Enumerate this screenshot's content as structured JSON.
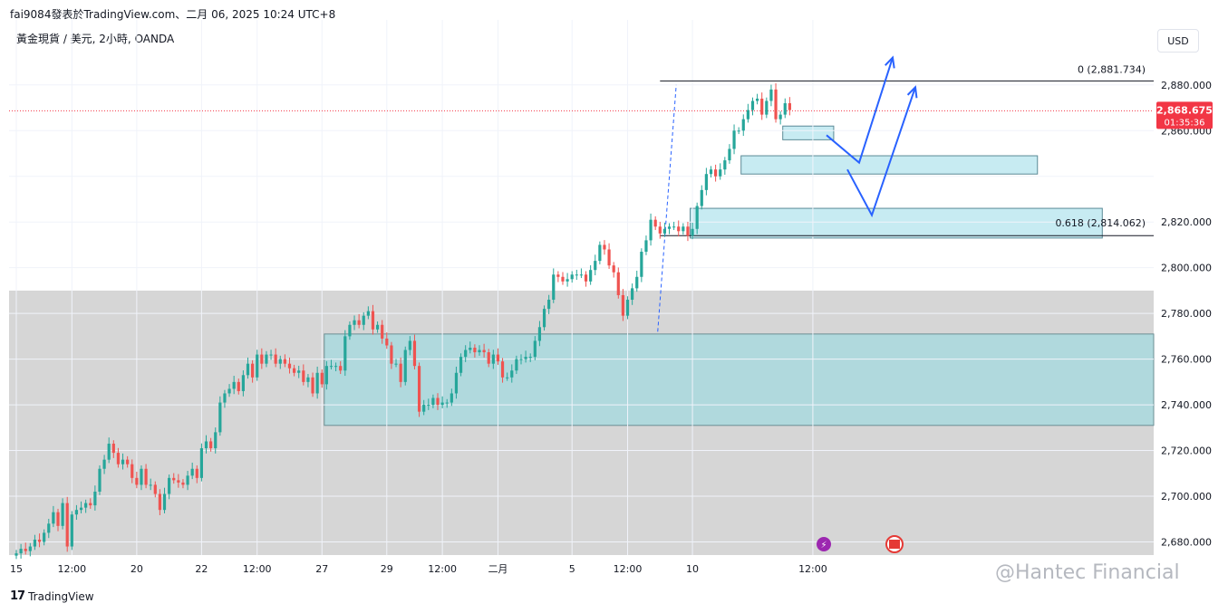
{
  "header": {
    "publisher_line": "fai9084發表於TradingView.com、二月 06, 2025 10:24 UTC+8",
    "symbol_line": "黃金現貨 / 美元, 2小時, OANDA",
    "currency": "USD"
  },
  "footer": {
    "logo_text": "TradingView",
    "watermark": "@Hantec Financial"
  },
  "colors": {
    "up": "#26a69a",
    "down": "#ef5350",
    "gray_zone": "#d6d6d6",
    "zone_fill": "#b4e4ee",
    "arrow": "#2962ff",
    "price_line": "#f23645"
  },
  "chart_data": {
    "type": "candlestick",
    "ylim": [
      2672,
      2898
    ],
    "y_ticks": [
      2680,
      2700,
      2720,
      2740,
      2760,
      2780,
      2800,
      2820,
      2840,
      2860,
      2880
    ],
    "y_tick_labels": [
      "2,680.000",
      "2,700.000",
      "2,720.000",
      "2,740.000",
      "2,760.000",
      "2,780.000",
      "2,800.000",
      "2,820.000",
      "",
      "2,860.000",
      "2,880.000"
    ],
    "x_ticks": [
      {
        "index": 0,
        "label": "15"
      },
      {
        "index": 12,
        "label": "12:00"
      },
      {
        "index": 26,
        "label": "20"
      },
      {
        "index": 40,
        "label": "22"
      },
      {
        "index": 52,
        "label": "12:00"
      },
      {
        "index": 66,
        "label": "27"
      },
      {
        "index": 80,
        "label": "29"
      },
      {
        "index": 92,
        "label": "12:00"
      },
      {
        "index": 104,
        "label": "二月"
      },
      {
        "index": 120,
        "label": "5"
      },
      {
        "index": 132,
        "label": "12:00"
      },
      {
        "index": 146,
        "label": "10"
      },
      {
        "index": 172,
        "label": "12:00"
      }
    ],
    "closes": [
      2675,
      2677,
      2676,
      2678,
      2681,
      2680,
      2684,
      2688,
      2693,
      2687,
      2697,
      2678,
      2692,
      2694,
      2695,
      2697,
      2696,
      2702,
      2712,
      2716,
      2723,
      2719,
      2714,
      2716,
      2714,
      2708,
      2705,
      2712,
      2705,
      2705,
      2701,
      2694,
      2701,
      2708,
      2707,
      2706,
      2705,
      2709,
      2712,
      2708,
      2721,
      2724,
      2721,
      2728,
      2741,
      2745,
      2747,
      2750,
      2746,
      2753,
      2758,
      2752,
      2762,
      2758,
      2762,
      2762,
      2758,
      2760,
      2758,
      2756,
      2754,
      2755,
      2750,
      2752,
      2745,
      2754,
      2749,
      2757,
      2757,
      2757,
      2755,
      2770,
      2775,
      2777,
      2775,
      2779,
      2781,
      2773,
      2775,
      2769,
      2766,
      2758,
      2758,
      2750,
      2764,
      2768,
      2757,
      2737,
      2740,
      2740,
      2743,
      2740,
      2741,
      2741,
      2745,
      2754,
      2761,
      2764,
      2765,
      2763,
      2764,
      2763,
      2758,
      2762,
      2759,
      2752,
      2752,
      2755,
      2760,
      2760,
      2761,
      2761,
      2768,
      2774,
      2782,
      2786,
      2797,
      2796,
      2794,
      2795,
      2797,
      2797,
      2797,
      2794,
      2799,
      2803,
      2810,
      2808,
      2801,
      2798,
      2788,
      2779,
      2786,
      2791,
      2796,
      2807,
      2812,
      2821,
      2818,
      2815,
      2817,
      2818,
      2818,
      2816,
      2818,
      2814,
      2817,
      2827,
      2834,
      2841,
      2843,
      2840,
      2843,
      2847,
      2852,
      2860,
      2860,
      2865,
      2869,
      2873,
      2874,
      2867,
      2873,
      2878,
      2865,
      2867,
      2872,
      2869
    ],
    "annotations": {
      "fib_0": {
        "label": "0 (2,881.734)",
        "value": 2881.734
      },
      "fib_618": {
        "label": "0.618 (2,814.062)",
        "value": 2814.062
      },
      "current_price": {
        "label": "2,868.675",
        "value": 2868.675,
        "countdown": "01:35:36"
      },
      "gray_zone": [
        2672,
        2790
      ],
      "demand_zone_large": [
        2731,
        2771
      ],
      "zones": [
        [
          2856,
          2862
        ],
        [
          2841,
          2849
        ],
        [
          2813,
          2826
        ]
      ],
      "projection_path_a": [
        2858,
        2846,
        2892
      ],
      "projection_path_b": [
        2843,
        2823,
        2879
      ]
    }
  }
}
